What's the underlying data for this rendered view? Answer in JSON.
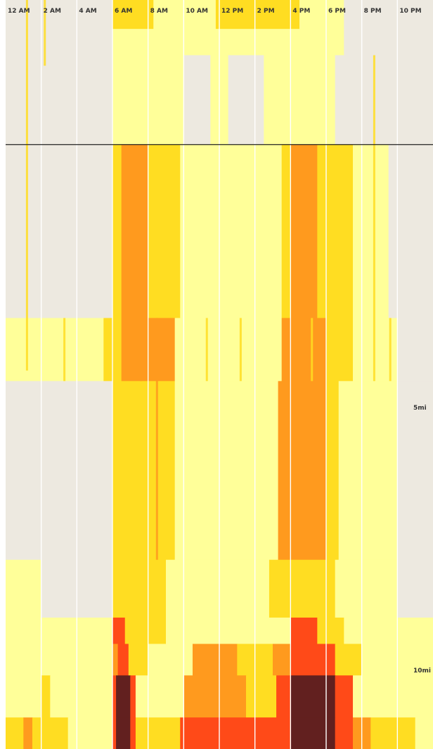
{
  "chart_data": {
    "type": "heatmap",
    "title": "",
    "xlabel": "",
    "ylabel": "",
    "x_tick_labels": [
      "12 AM",
      "2 AM",
      "4 AM",
      "6 AM",
      "8 AM",
      "10 AM",
      "12 PM",
      "2 PM",
      "4 PM",
      "6 PM",
      "8 PM",
      "10 PM"
    ],
    "x_range_hours": [
      0,
      24
    ],
    "distance_markers": [
      {
        "label": "5mi",
        "miles": 5
      },
      {
        "label": "10mi",
        "miles": 10
      }
    ],
    "y_range_miles": [
      -2.75,
      11.5
    ],
    "reference_line_miles": 0,
    "gridlines_every_hours": 2,
    "colors": {
      "level_0": "#ede9e0",
      "level_1": "#ffff99",
      "level_2": "#ffdd22",
      "level_3": "#ff9a1e",
      "level_4": "#ff4a18",
      "level_5": "#62201f"
    },
    "segments": [
      {
        "miles_from": -2.75,
        "miles_to": -2.2,
        "time_bins": [
          [
            0,
            6,
            0
          ],
          [
            6,
            8.3,
            2
          ],
          [
            8.3,
            11.8,
            1
          ],
          [
            11.8,
            16.5,
            2
          ],
          [
            16.5,
            19,
            1
          ],
          [
            19,
            24,
            0
          ]
        ]
      },
      {
        "miles_from": -2.2,
        "miles_to": -1.7,
        "time_bins": [
          [
            0,
            6,
            0
          ],
          [
            6,
            19,
            1
          ],
          [
            19,
            24,
            0
          ]
        ]
      },
      {
        "miles_from": -1.7,
        "miles_to": 0,
        "time_bins": [
          [
            0,
            6,
            0
          ],
          [
            6,
            10,
            1
          ],
          [
            10,
            11.5,
            0
          ],
          [
            11.5,
            12.5,
            1
          ],
          [
            12.5,
            14.5,
            0
          ],
          [
            14.5,
            18.5,
            1
          ],
          [
            18.5,
            24,
            0
          ]
        ]
      },
      {
        "miles_from": 0,
        "miles_to": 3.3,
        "time_bins": [
          [
            0,
            6,
            0
          ],
          [
            6,
            6.5,
            2
          ],
          [
            6.5,
            8,
            3
          ],
          [
            8,
            9.8,
            2
          ],
          [
            9.8,
            15.5,
            1
          ],
          [
            15.5,
            16,
            2
          ],
          [
            16,
            17.5,
            3
          ],
          [
            17.5,
            19.5,
            2
          ],
          [
            19.5,
            21.5,
            1
          ],
          [
            21.5,
            24,
            0
          ]
        ]
      },
      {
        "miles_from": 3.3,
        "miles_to": 4.5,
        "time_bins": [
          [
            0,
            5.5,
            1
          ],
          [
            5.5,
            6.5,
            2
          ],
          [
            6.5,
            9.5,
            3
          ],
          [
            9.5,
            15.5,
            1
          ],
          [
            15.5,
            18,
            3
          ],
          [
            18,
            19.5,
            2
          ],
          [
            19.5,
            22,
            1
          ],
          [
            22,
            24,
            0
          ]
        ]
      },
      {
        "miles_from": 4.5,
        "miles_to": 7.9,
        "time_bins": [
          [
            0,
            6,
            0
          ],
          [
            6,
            9.5,
            2
          ],
          [
            9.5,
            15.3,
            1
          ],
          [
            15.3,
            18,
            3
          ],
          [
            18,
            18.7,
            2
          ],
          [
            18.7,
            22,
            1
          ],
          [
            22,
            24,
            0
          ]
        ]
      },
      {
        "miles_from": 7.9,
        "miles_to": 9.0,
        "time_bins": [
          [
            0,
            2,
            1
          ],
          [
            2,
            6,
            0
          ],
          [
            6,
            9,
            2
          ],
          [
            9,
            14.8,
            1
          ],
          [
            14.8,
            18.5,
            2
          ],
          [
            18.5,
            22,
            1
          ],
          [
            22,
            24,
            0
          ]
        ]
      },
      {
        "miles_from": 9.0,
        "miles_to": 9.5,
        "time_bins": [
          [
            0,
            6,
            1
          ],
          [
            6,
            6.7,
            4
          ],
          [
            6.7,
            9,
            2
          ],
          [
            9,
            16,
            1
          ],
          [
            16,
            17.5,
            4
          ],
          [
            17.5,
            19,
            2
          ],
          [
            19,
            24,
            1
          ]
        ]
      },
      {
        "miles_from": 9.5,
        "miles_to": 10.1,
        "time_bins": [
          [
            0,
            6,
            1
          ],
          [
            6,
            6.3,
            3
          ],
          [
            6.3,
            6.9,
            4
          ],
          [
            6.9,
            8,
            2
          ],
          [
            8,
            10.5,
            1
          ],
          [
            10.5,
            13,
            3
          ],
          [
            13,
            15,
            2
          ],
          [
            15,
            16,
            3
          ],
          [
            16,
            18.5,
            4
          ],
          [
            18.5,
            20,
            2
          ],
          [
            20,
            24,
            1
          ]
        ]
      },
      {
        "miles_from": 10.1,
        "miles_to": 10.9,
        "time_bins": [
          [
            0,
            2,
            1
          ],
          [
            2,
            2.5,
            2
          ],
          [
            2.5,
            6,
            1
          ],
          [
            6,
            6.2,
            4
          ],
          [
            6.2,
            7,
            5
          ],
          [
            7,
            7.3,
            4
          ],
          [
            7.3,
            10,
            1
          ],
          [
            10,
            13.5,
            3
          ],
          [
            13.5,
            15.2,
            2
          ],
          [
            15.2,
            16,
            4
          ],
          [
            16,
            18.5,
            5
          ],
          [
            18.5,
            19.5,
            4
          ],
          [
            19.5,
            24,
            1
          ]
        ]
      },
      {
        "miles_from": 10.9,
        "miles_to": 11.5,
        "time_bins": [
          [
            0,
            1,
            2
          ],
          [
            1,
            1.5,
            3
          ],
          [
            1.5,
            3.5,
            2
          ],
          [
            3.5,
            6,
            1
          ],
          [
            6,
            6.2,
            4
          ],
          [
            6.2,
            7,
            5
          ],
          [
            7,
            7.3,
            4
          ],
          [
            7.3,
            9.8,
            2
          ],
          [
            9.8,
            15,
            4
          ],
          [
            15,
            16,
            4
          ],
          [
            16,
            18.5,
            5
          ],
          [
            18.5,
            19.5,
            4
          ],
          [
            19.5,
            20.5,
            3
          ],
          [
            20.5,
            23,
            2
          ],
          [
            23,
            24,
            1
          ]
        ]
      }
    ],
    "streaks": [
      {
        "hour": 1.2,
        "miles_from": -2.75,
        "miles_to": 4.3,
        "level": 2
      },
      {
        "hour": 2.2,
        "miles_from": -2.75,
        "miles_to": -1.5,
        "level": 2
      },
      {
        "hour": 3.3,
        "miles_from": 3.3,
        "miles_to": 4.5,
        "level": 2
      },
      {
        "hour": 7.6,
        "miles_from": 0,
        "miles_to": 4.5,
        "level": 3
      },
      {
        "hour": 8.5,
        "miles_from": 3.3,
        "miles_to": 7.9,
        "level": 3
      },
      {
        "hour": 11.3,
        "miles_from": 3.3,
        "miles_to": 4.5,
        "level": 2
      },
      {
        "hour": 13.2,
        "miles_from": 3.3,
        "miles_to": 4.5,
        "level": 2
      },
      {
        "hour": 17.2,
        "miles_from": 3.3,
        "miles_to": 4.5,
        "level": 2
      },
      {
        "hour": 20.7,
        "miles_from": -1.7,
        "miles_to": 4.5,
        "level": 2
      },
      {
        "hour": 21.6,
        "miles_from": 3.3,
        "miles_to": 4.5,
        "level": 2
      }
    ]
  }
}
